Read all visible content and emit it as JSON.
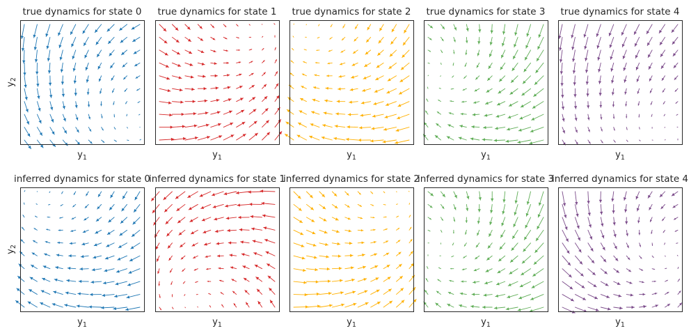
{
  "chart_data": {
    "type": "quiver",
    "rows": [
      {
        "title_prefix": "true dynamics for state"
      },
      {
        "title_prefix": "inferred dynamics for state"
      }
    ],
    "states": [
      {
        "id": "0",
        "color": "#1f77b4"
      },
      {
        "id": "1",
        "color": "#d62728"
      },
      {
        "id": "2",
        "color": "#ffb000"
      },
      {
        "id": "3",
        "color": "#5fad56"
      },
      {
        "id": "4",
        "color": "#7b4b8a"
      }
    ],
    "xlabel": {
      "base": "y",
      "sub": "1"
    },
    "ylabel": {
      "base": "y",
      "sub": "2"
    },
    "grid": "off",
    "ticks": "none",
    "lattice": 10,
    "panels": [
      [
        {
          "state": "0",
          "fixed_point": [
            0.95,
            0.15
          ],
          "matrix": [
            [
              -0.6,
              -1.0
            ],
            [
              1.0,
              -0.6
            ]
          ]
        },
        {
          "state": "1",
          "fixed_point": [
            0.85,
            0.95
          ],
          "matrix": [
            [
              -0.6,
              -0.6
            ],
            [
              0.6,
              -0.6
            ]
          ]
        },
        {
          "state": "2",
          "fixed_point": [
            0.1,
            0.95
          ],
          "matrix": [
            [
              -0.6,
              1.0
            ],
            [
              -1.0,
              -0.6
            ]
          ]
        },
        {
          "state": "3",
          "fixed_point": [
            0.1,
            0.55
          ],
          "matrix": [
            [
              -0.6,
              0.6
            ],
            [
              -0.6,
              -0.6
            ]
          ]
        },
        {
          "state": "4",
          "fixed_point": [
            0.85,
            0.1
          ],
          "matrix": [
            [
              -0.3,
              -0.6
            ],
            [
              0.6,
              -0.9
            ]
          ]
        }
      ],
      [
        {
          "state": "0",
          "fixed_point": [
            0.15,
            0.95
          ],
          "matrix": [
            [
              -0.6,
              1.0
            ],
            [
              -1.0,
              -0.6
            ]
          ]
        },
        {
          "state": "1",
          "fixed_point": [
            0.3,
            0.05
          ],
          "matrix": [
            [
              -0.6,
              -0.9
            ],
            [
              0.9,
              -0.6
            ]
          ]
        },
        {
          "state": "2",
          "fixed_point": [
            0.9,
            0.95
          ],
          "matrix": [
            [
              -0.6,
              -0.6
            ],
            [
              0.6,
              -0.6
            ]
          ]
        },
        {
          "state": "3",
          "fixed_point": [
            0.1,
            0.5
          ],
          "matrix": [
            [
              -0.6,
              0.6
            ],
            [
              -0.6,
              -0.6
            ]
          ]
        },
        {
          "state": "4",
          "fixed_point": [
            0.9,
            0.45
          ],
          "matrix": [
            [
              -0.6,
              -0.7
            ],
            [
              0.7,
              -0.6
            ]
          ]
        }
      ]
    ]
  }
}
